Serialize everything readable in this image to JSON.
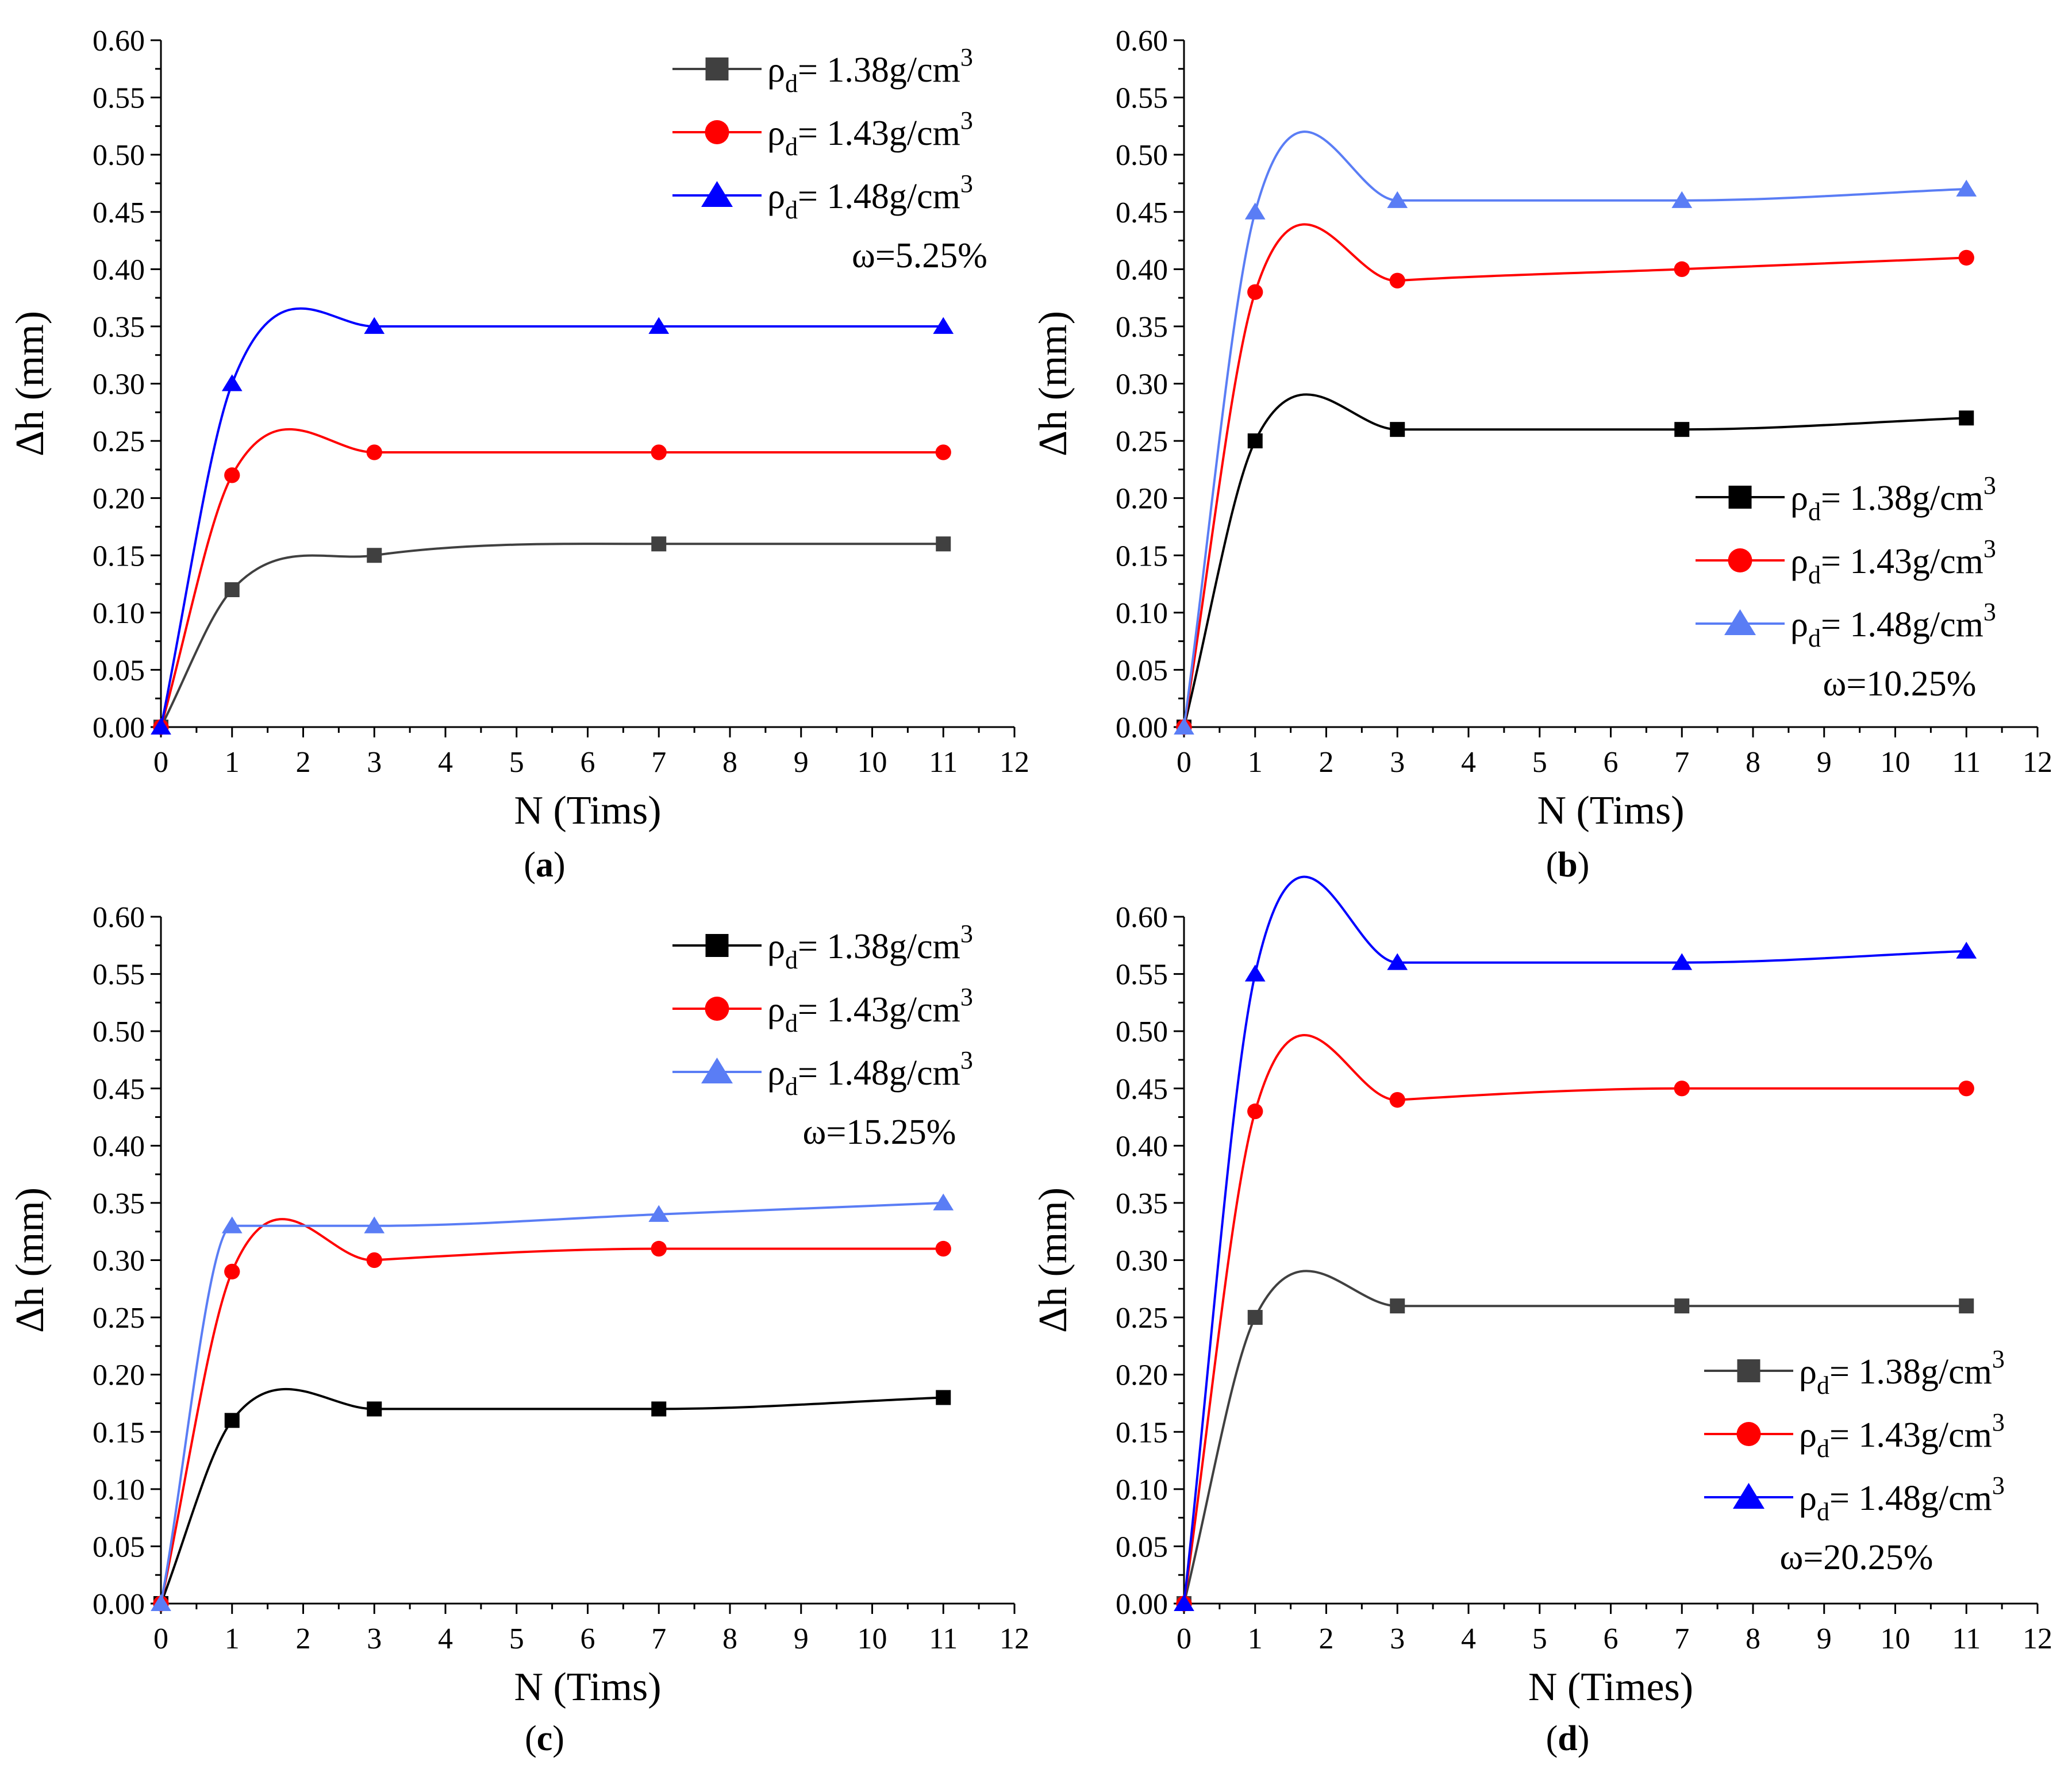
{
  "figure": {
    "x_tick_labels": [
      "0",
      "1",
      "2",
      "3",
      "4",
      "5",
      "6",
      "7",
      "8",
      "9",
      "10",
      "11",
      "12"
    ],
    "y_tick_labels": [
      "0.00",
      "0.05",
      "0.10",
      "0.15",
      "0.20",
      "0.25",
      "0.30",
      "0.35",
      "0.40",
      "0.45",
      "0.50",
      "0.55",
      "0.60"
    ]
  },
  "chart_data": [
    {
      "type": "line",
      "panel_label": "a",
      "xlabel": "N (Tims)",
      "ylabel": "Δh (mm)",
      "xlim": [
        0,
        12
      ],
      "ylim": [
        0,
        0.6
      ],
      "x": [
        0,
        1,
        3,
        7,
        11
      ],
      "annotation": "ω=5.25%",
      "legend_position": "top-right",
      "series": [
        {
          "name_base": "ρ",
          "name_sub": "d",
          "name_rest": "= 1.38g/cm",
          "name_sup": "3",
          "marker": "square",
          "color": "#404040",
          "values": [
            0,
            0.12,
            0.15,
            0.16,
            0.16
          ]
        },
        {
          "name_base": "ρ",
          "name_sub": "d",
          "name_rest": "= 1.43g/cm",
          "name_sup": "3",
          "marker": "circle",
          "color": "#ff0000",
          "values": [
            0,
            0.22,
            0.24,
            0.24,
            0.24
          ]
        },
        {
          "name_base": "ρ",
          "name_sub": "d",
          "name_rest": "= 1.48g/cm",
          "name_sup": "3",
          "marker": "triangle",
          "color": "#0000ff",
          "values": [
            0,
            0.3,
            0.35,
            0.35,
            0.35
          ]
        }
      ]
    },
    {
      "type": "line",
      "panel_label": "b",
      "xlabel": "N (Tims)",
      "ylabel": "Δh (mm)",
      "xlim": [
        0,
        12
      ],
      "ylim": [
        0,
        0.6
      ],
      "x": [
        0,
        1,
        3,
        7,
        11
      ],
      "annotation": "ω=10.25%",
      "legend_position": "bottom-right",
      "series": [
        {
          "name_base": "ρ",
          "name_sub": "d",
          "name_rest": "= 1.38g/cm",
          "name_sup": "3",
          "marker": "square",
          "color": "#000000",
          "values": [
            0,
            0.25,
            0.26,
            0.26,
            0.27
          ]
        },
        {
          "name_base": "ρ",
          "name_sub": "d",
          "name_rest": "= 1.43g/cm",
          "name_sup": "3",
          "marker": "circle",
          "color": "#ff0000",
          "values": [
            0,
            0.38,
            0.39,
            0.4,
            0.41
          ]
        },
        {
          "name_base": "ρ",
          "name_sub": "d",
          "name_rest": "= 1.48g/cm",
          "name_sup": "3",
          "marker": "triangle",
          "color": "#5a7df5",
          "values": [
            0,
            0.45,
            0.46,
            0.46,
            0.47
          ]
        }
      ]
    },
    {
      "type": "line",
      "panel_label": "c",
      "xlabel": "N (Tims)",
      "ylabel": "Δh (mm)",
      "xlim": [
        0,
        12
      ],
      "ylim": [
        0,
        0.6
      ],
      "x": [
        0,
        1,
        3,
        7,
        11
      ],
      "annotation": "ω=15.25%",
      "legend_position": "top-right",
      "series": [
        {
          "name_base": "ρ",
          "name_sub": "d",
          "name_rest": "= 1.38g/cm",
          "name_sup": "3",
          "marker": "square",
          "color": "#000000",
          "values": [
            0,
            0.16,
            0.17,
            0.17,
            0.18
          ]
        },
        {
          "name_base": "ρ",
          "name_sub": "d",
          "name_rest": "= 1.43g/cm",
          "name_sup": "3",
          "marker": "circle",
          "color": "#ff0000",
          "values": [
            0,
            0.29,
            0.3,
            0.31,
            0.31
          ]
        },
        {
          "name_base": "ρ",
          "name_sub": "d",
          "name_rest": "= 1.48g/cm",
          "name_sup": "3",
          "marker": "triangle",
          "color": "#5a7df5",
          "values": [
            0,
            0.33,
            0.33,
            0.34,
            0.35
          ]
        }
      ]
    },
    {
      "type": "line",
      "panel_label": "d",
      "xlabel": "N (Times)",
      "ylabel": "Δh (mm)",
      "xlim": [
        0,
        12
      ],
      "ylim": [
        0,
        0.6
      ],
      "x": [
        0,
        1,
        3,
        7,
        11
      ],
      "annotation": "ω=20.25%",
      "legend_position": "bottom-right",
      "series": [
        {
          "name_base": "ρ",
          "name_sub": "d",
          "name_rest": "= 1.38g/cm",
          "name_sup": "3",
          "marker": "square",
          "color": "#404040",
          "values": [
            0,
            0.25,
            0.26,
            0.26,
            0.26
          ]
        },
        {
          "name_base": "ρ",
          "name_sub": "d",
          "name_rest": "= 1.43g/cm",
          "name_sup": "3",
          "marker": "circle",
          "color": "#ff0000",
          "values": [
            0,
            0.43,
            0.44,
            0.45,
            0.45
          ]
        },
        {
          "name_base": "ρ",
          "name_sub": "d",
          "name_rest": "= 1.48g/cm",
          "name_sup": "3",
          "marker": "triangle",
          "color": "#0000ff",
          "values": [
            0,
            0.55,
            0.56,
            0.56,
            0.57
          ]
        }
      ]
    }
  ]
}
